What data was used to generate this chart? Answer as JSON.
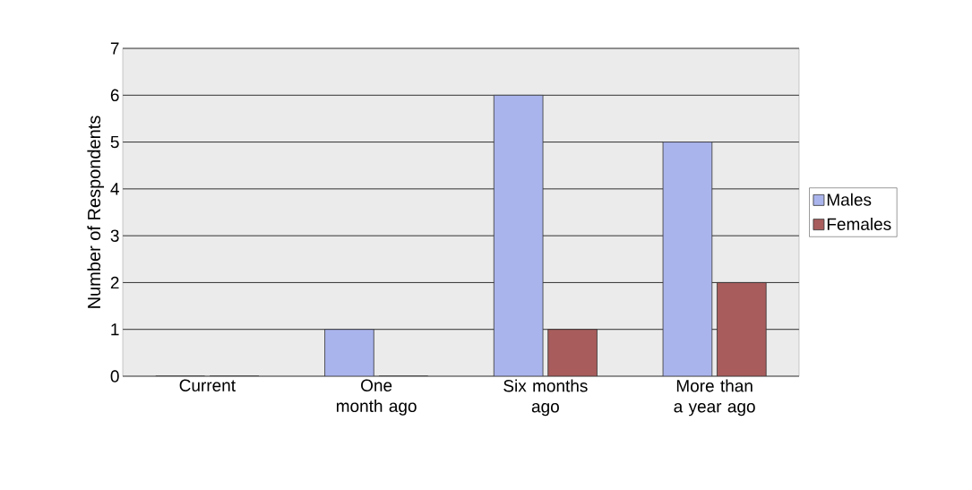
{
  "chart_data": {
    "type": "bar",
    "ylabel": "Number of Respondents",
    "categories": [
      "Current",
      "One month ago",
      "Six months ago",
      "More than a year ago"
    ],
    "series": [
      {
        "name": "Males",
        "color": "#aab4ec",
        "values": [
          0,
          1,
          6,
          5
        ]
      },
      {
        "name": "Females",
        "color": "#a85c5c",
        "values": [
          0,
          0,
          1,
          2
        ]
      }
    ],
    "ylim": [
      0,
      7
    ],
    "yticks": [
      0,
      1,
      2,
      3,
      4,
      5,
      6,
      7
    ],
    "grid": "y",
    "legend": "right"
  }
}
